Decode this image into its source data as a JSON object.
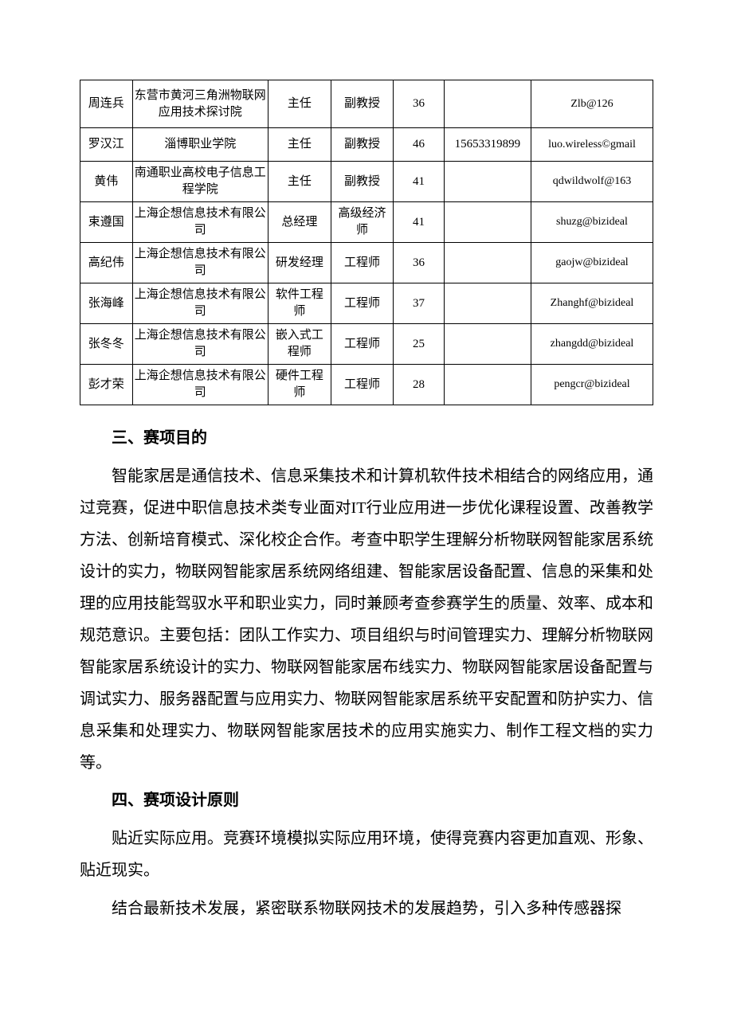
{
  "table": {
    "rows": [
      {
        "name": "周连兵",
        "org": "东营市黄河三角洲物联网应用技术探讨院",
        "position": "主任",
        "title": "副教授",
        "age": "36",
        "phone": "",
        "email": "Zlb@126"
      },
      {
        "name": "罗汉江",
        "org": "淄博职业学院",
        "position": "主任",
        "title": "副教授",
        "age": "46",
        "phone": "15653319899",
        "email": "luo.wireless©gmail"
      },
      {
        "name": "黄伟",
        "org": "南通职业高校电子信息工程学院",
        "position": "主任",
        "title": "副教授",
        "age": "41",
        "phone": "",
        "email": "qdwildwolf@163"
      },
      {
        "name": "束遵国",
        "org": "上海企想信息技术有限公司",
        "position": "总经理",
        "title": "高级经济师",
        "age": "41",
        "phone": "",
        "email": "shuzg@bizideal"
      },
      {
        "name": "高纪伟",
        "org": "上海企想信息技术有限公司",
        "position": "研发经理",
        "title": "工程师",
        "age": "36",
        "phone": "",
        "email": "gaojw@bizideal"
      },
      {
        "name": "张海峰",
        "org": "上海企想信息技术有限公司",
        "position": "软件工程师",
        "title": "工程师",
        "age": "37",
        "phone": "",
        "email": "Zhanghf@bizideal"
      },
      {
        "name": "张冬冬",
        "org": "上海企想信息技术有限公司",
        "position": "嵌入式工程师",
        "title": "工程师",
        "age": "25",
        "phone": "",
        "email": "zhangdd@bizideal"
      },
      {
        "name": "彭才荣",
        "org": "上海企想信息技术有限公司",
        "position": "硬件工程师",
        "title": "工程师",
        "age": "28",
        "phone": "",
        "email": "pengcr@bizideal"
      }
    ]
  },
  "section3": {
    "heading": "三、赛项目的",
    "para1": "智能家居是通信技术、信息采集技术和计算机软件技术相结合的网络应用，通过竞赛，促进中职信息技术类专业面对IT行业应用进一步优化课程设置、改善教学方法、创新培育模式、深化校企合作。考查中职学生理解分析物联网智能家居系统设计的实力，物联网智能家居系统网络组建、智能家居设备配置、信息的采集和处理的应用技能驾驭水平和职业实力，同时兼顾考查参赛学生的质量、效率、成本和规范意识。主要包括：团队工作实力、项目组织与时间管理实力、理解分析物联网智能家居系统设计的实力、物联网智能家居布线实力、物联网智能家居设备配置与调试实力、服务器配置与应用实力、物联网智能家居系统平安配置和防护实力、信息采集和处理实力、物联网智能家居技术的应用实施实力、制作工程文档的实力等。"
  },
  "section4": {
    "heading": "四、赛项设计原则",
    "para1": "贴近实际应用。竞赛环境模拟实际应用环境，使得竞赛内容更加直观、形象、贴近现实。",
    "para2": "结合最新技术发展，紧密联系物联网技术的发展趋势，引入多种传感器探"
  }
}
